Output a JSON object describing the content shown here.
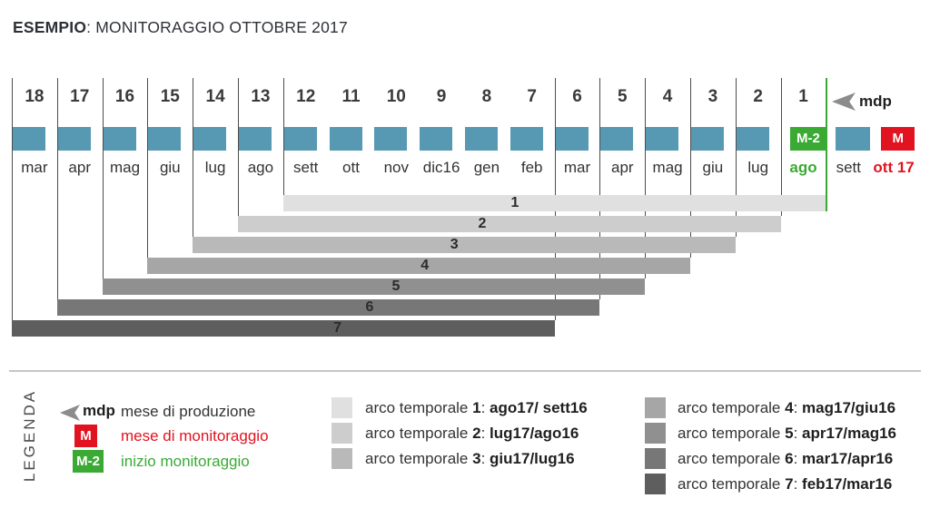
{
  "title": {
    "prefix": "ESEMPIO",
    "rest": ": MONITORAGGIO OTTOBRE 2017"
  },
  "colors": {
    "teal": "#5798b2",
    "green": "#3aaa35",
    "red": "#e21320",
    "grid_line": "#4d4d4d",
    "bar_grays": [
      "#e0e0e0",
      "#cdcdcd",
      "#b9b9b9",
      "#a6a6a6",
      "#909090",
      "#777777",
      "#5e5e5e"
    ]
  },
  "timeline": {
    "mdp_label": "mdp",
    "columns": [
      {
        "num": "18",
        "month": "mar",
        "type": "teal"
      },
      {
        "num": "17",
        "month": "apr",
        "type": "teal"
      },
      {
        "num": "16",
        "month": "mag",
        "type": "teal"
      },
      {
        "num": "15",
        "month": "giu",
        "type": "teal"
      },
      {
        "num": "14",
        "month": "lug",
        "type": "teal"
      },
      {
        "num": "13",
        "month": "ago",
        "type": "teal"
      },
      {
        "num": "12",
        "month": "sett",
        "type": "teal"
      },
      {
        "num": "11",
        "month": "ott",
        "type": "teal"
      },
      {
        "num": "10",
        "month": "nov",
        "type": "teal"
      },
      {
        "num": "9",
        "month": "dic16",
        "type": "teal"
      },
      {
        "num": "8",
        "month": "gen",
        "type": "teal"
      },
      {
        "num": "7",
        "month": "feb",
        "type": "teal"
      },
      {
        "num": "6",
        "month": "mar",
        "type": "teal"
      },
      {
        "num": "5",
        "month": "apr",
        "type": "teal"
      },
      {
        "num": "4",
        "month": "mag",
        "type": "teal"
      },
      {
        "num": "3",
        "month": "giu",
        "type": "teal"
      },
      {
        "num": "2",
        "month": "lug",
        "type": "teal"
      },
      {
        "num": "1",
        "month": "ago",
        "type": "m2",
        "square_label": "M-2"
      },
      {
        "num": "",
        "month": "sett",
        "type": "teal"
      },
      {
        "num": "",
        "month": "ott 17",
        "type": "m",
        "square_label": "M"
      }
    ]
  },
  "bars": [
    {
      "num": "1",
      "span": "ago17/ sett16"
    },
    {
      "num": "2",
      "span": "lug17/ago16"
    },
    {
      "num": "3",
      "span": "giu17/lug16"
    },
    {
      "num": "4",
      "span": "mag17/giu16"
    },
    {
      "num": "5",
      "span": "apr17/mag16"
    },
    {
      "num": "6",
      "span": "mar17/apr16"
    },
    {
      "num": "7",
      "span": "feb17/mar16"
    }
  ],
  "legend": {
    "heading": "LEGENDA",
    "arc_prefix": "arco temporale",
    "arc_separator": ": ",
    "mdp": {
      "label": "mdp",
      "text": "mese di produzione"
    },
    "monitoring": {
      "label": "M",
      "text": "mese di monitoraggio"
    },
    "start": {
      "label": "M-2",
      "text": "inizio monitoraggio"
    },
    "arcs": [
      {
        "num": "1",
        "dates": "ago17/ sett16"
      },
      {
        "num": "2",
        "dates": "lug17/ago16"
      },
      {
        "num": "3",
        "dates": "giu17/lug16"
      },
      {
        "num": "4",
        "dates": "mag17/giu16"
      },
      {
        "num": "5",
        "dates": "apr17/mag16"
      },
      {
        "num": "6",
        "dates": "mar17/apr16"
      },
      {
        "num": "7",
        "dates": "feb17/mar16"
      }
    ]
  }
}
